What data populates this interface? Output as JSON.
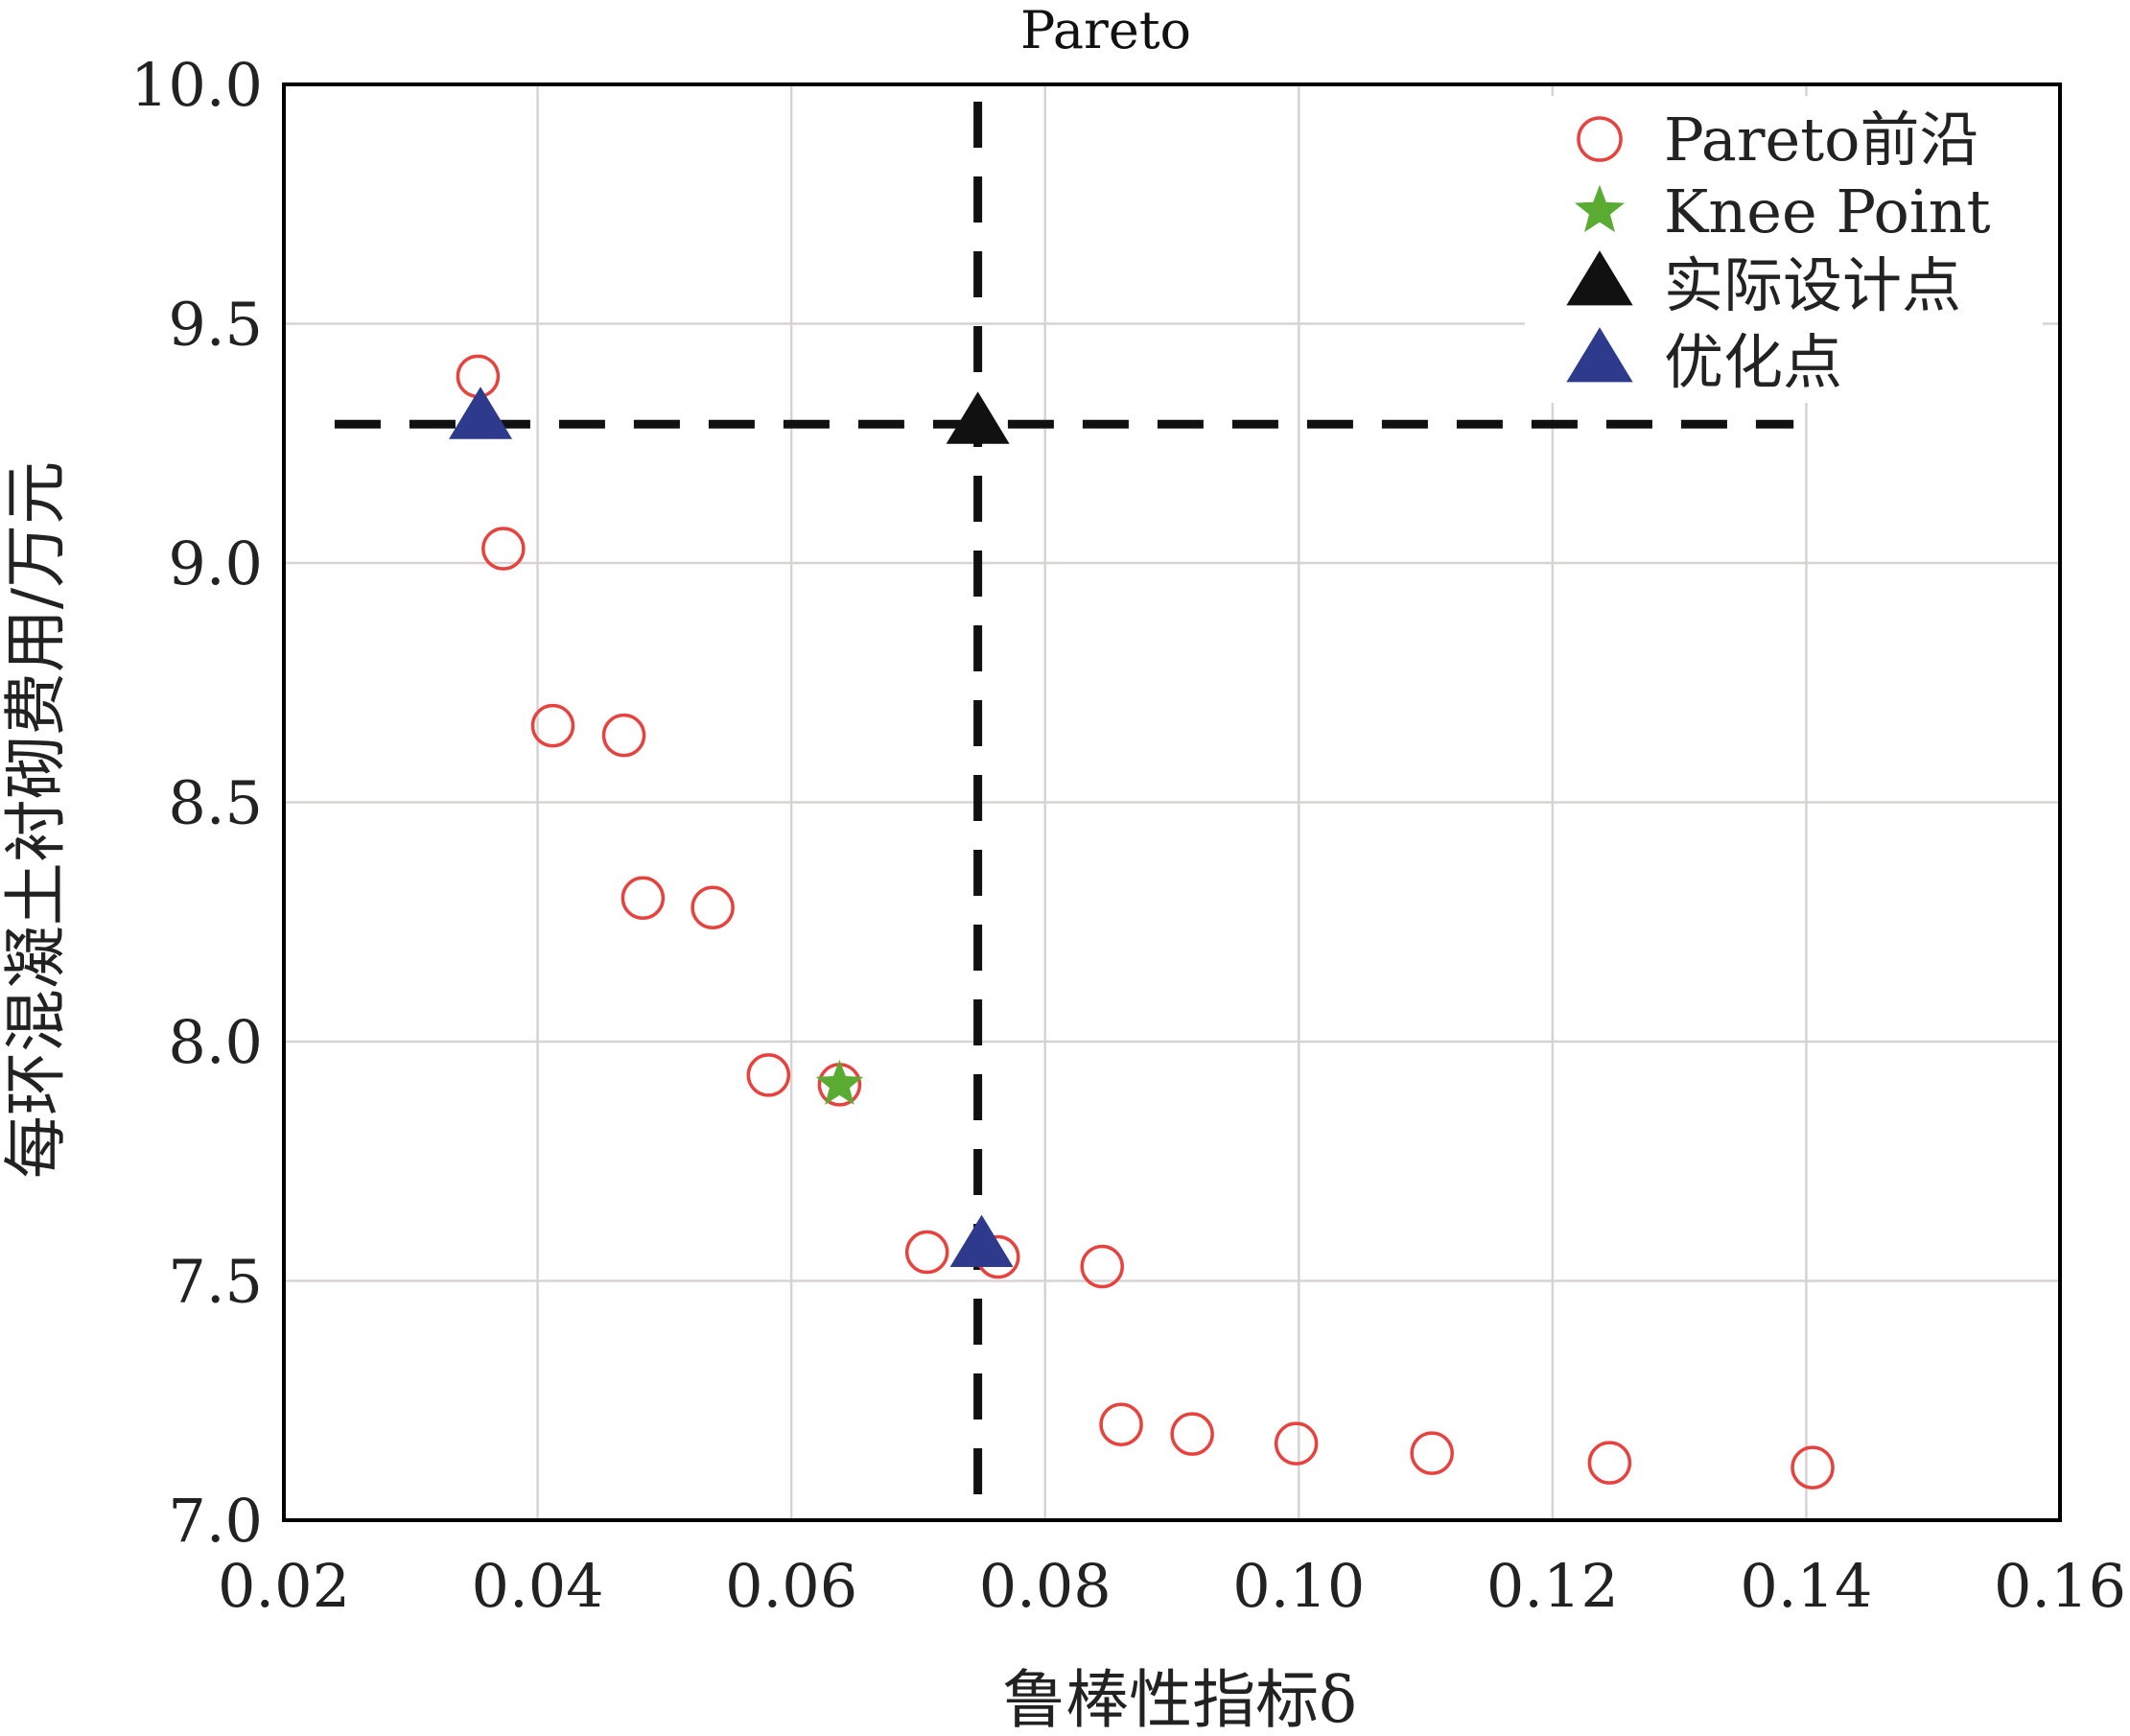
{
  "chart_data": {
    "type": "scatter",
    "title": "Pareto",
    "xlabel": "鲁棒性指标δ",
    "ylabel": "每环混凝土衬砌费用/万元",
    "xlim": [
      0.02,
      0.16
    ],
    "ylim": [
      7.0,
      10.0
    ],
    "x_ticks": [
      "0.02",
      "0.04",
      "0.06",
      "0.08",
      "0.10",
      "0.12",
      "0.14",
      "0.16"
    ],
    "y_ticks": [
      "7.0",
      "7.5",
      "8.0",
      "8.5",
      "9.0",
      "9.5",
      "10.0"
    ],
    "x_tick_values": [
      0.02,
      0.04,
      0.06,
      0.08,
      0.1,
      0.12,
      0.14,
      0.16
    ],
    "y_tick_values": [
      7.0,
      7.5,
      8.0,
      8.5,
      9.0,
      9.5,
      10.0
    ],
    "grid": true,
    "legend_position": "top-right",
    "series": [
      {
        "name": "Pareto前沿",
        "marker": "open-circle",
        "color": "#e8423f",
        "x": [
          0.0353,
          0.0373,
          0.0412,
          0.0468,
          0.0483,
          0.0538,
          0.0582,
          0.0638,
          0.0707,
          0.0763,
          0.0845,
          0.086,
          0.0916,
          0.0998,
          0.1105,
          0.1245,
          0.1405
        ],
        "y": [
          9.39,
          9.03,
          8.66,
          8.64,
          8.3,
          8.28,
          7.93,
          7.91,
          7.56,
          7.55,
          7.53,
          7.2,
          7.18,
          7.16,
          7.14,
          7.12,
          7.11
        ]
      },
      {
        "name": "Knee Point",
        "marker": "star",
        "color": "#5aab32",
        "x": [
          0.0638
        ],
        "y": [
          7.91
        ]
      },
      {
        "name": "实际设计点",
        "marker": "triangle",
        "color": "#111111",
        "x": [
          0.0747
        ],
        "y": [
          9.29
        ]
      },
      {
        "name": "优化点",
        "marker": "triangle",
        "color": "#2e3a8c",
        "x": [
          0.0355,
          0.075
        ],
        "y": [
          9.3,
          7.57
        ]
      }
    ],
    "reference_lines": [
      {
        "orientation": "horizontal",
        "value": 9.29,
        "style": "dashed",
        "color": "#111111",
        "x_range": [
          0.024,
          0.139
        ]
      },
      {
        "orientation": "vertical",
        "value": 0.0747,
        "style": "dashed",
        "color": "#111111"
      }
    ]
  }
}
